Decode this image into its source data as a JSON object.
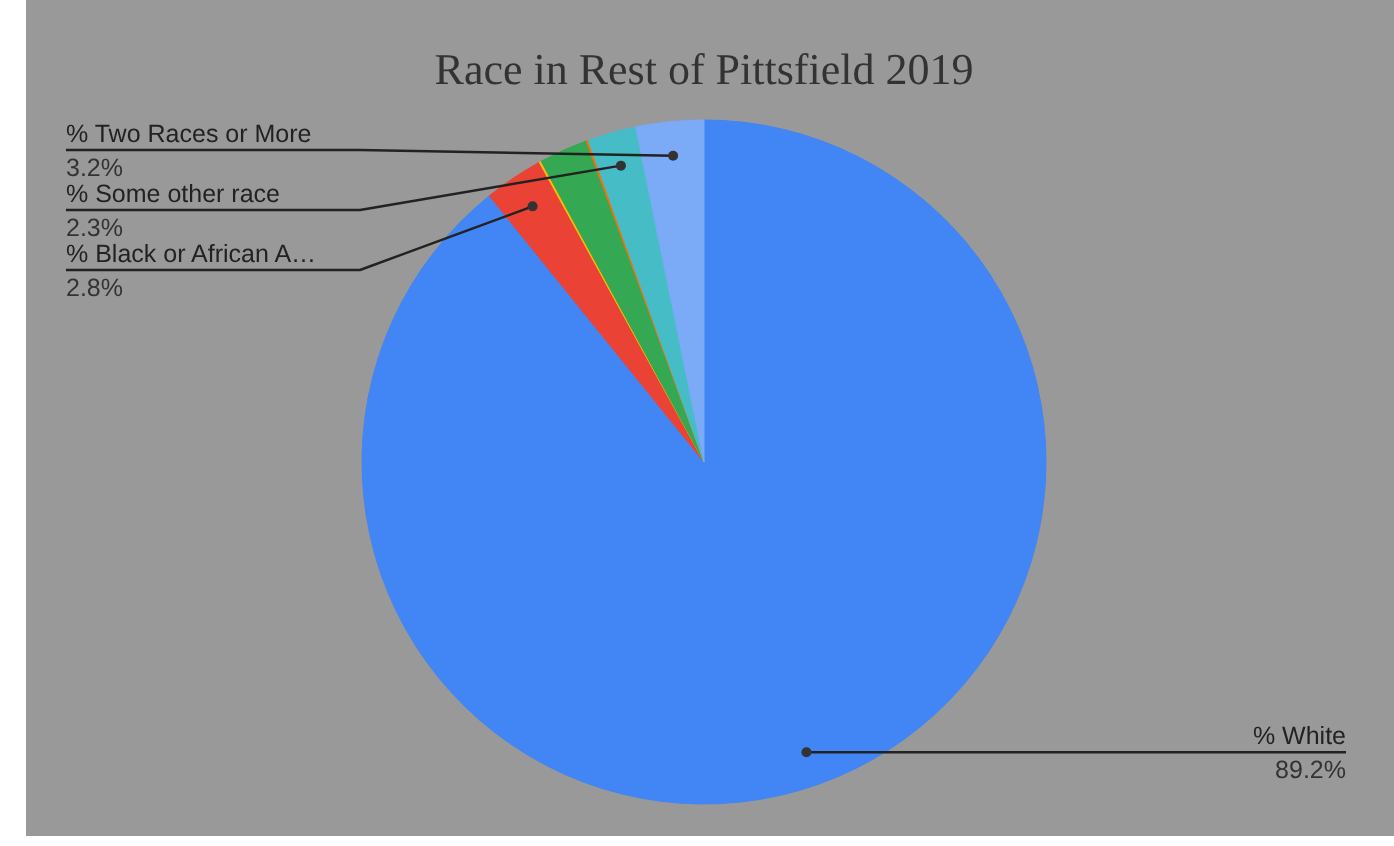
{
  "chart_data": {
    "type": "pie",
    "title": "Race in Rest of Pittsfield 2019",
    "categories": [
      "% White",
      "% Black or African A…",
      null,
      null,
      null,
      "% Some other race",
      "% Two Races or More"
    ],
    "values": [
      89.2,
      2.8,
      0.1,
      2.3,
      0.1,
      2.3,
      3.2
    ],
    "colors": [
      "#4285f4",
      "#ea4335",
      "#fbbc04",
      "#34a853",
      "#ff6d01",
      "#46bdc6",
      "#7baaf7"
    ],
    "value_labels": [
      "89.2%",
      "2.8%",
      null,
      null,
      null,
      "2.3%",
      "3.2%"
    ]
  }
}
